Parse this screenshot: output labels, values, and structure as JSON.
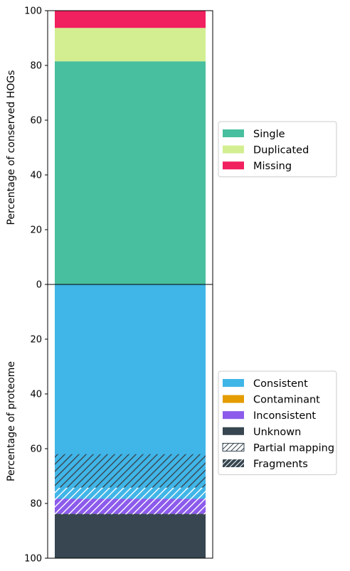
{
  "chart_data": [
    {
      "type": "bar",
      "stacked": true,
      "ylabel": "Percentage of conserved HOGs",
      "ylim": [
        0,
        100
      ],
      "yticks": [
        0,
        20,
        40,
        60,
        80,
        100
      ],
      "series": [
        {
          "name": "Single",
          "value": 81.5,
          "color": "#48BF9E"
        },
        {
          "name": "Duplicated",
          "value": 12.2,
          "color": "#D3EE91"
        },
        {
          "name": "Missing",
          "value": 6.3,
          "color": "#F1205F"
        }
      ],
      "legend": "center-right"
    },
    {
      "type": "bar",
      "stacked": true,
      "inverted_y": true,
      "ylabel": "Percentage of proteome",
      "ylim": [
        0,
        100
      ],
      "yticks": [
        0,
        20,
        40,
        60,
        80,
        100
      ],
      "series": [
        {
          "name": "Consistent",
          "value": 78.3,
          "color": "#40B5E7"
        },
        {
          "name": "Contaminant",
          "value": 0.0,
          "color": "#E49C00"
        },
        {
          "name": "Inconsistent",
          "value": 5.5,
          "color": "#8C5BEB"
        },
        {
          "name": "Unknown",
          "value": 16.2,
          "color": "#374650"
        }
      ],
      "overlays": [
        {
          "name": "Partial mapping",
          "start": 74.2,
          "end": 84.0
        },
        {
          "name": "Fragments",
          "start": 62.0,
          "end": 74.2
        }
      ],
      "legend": "center-right"
    }
  ]
}
